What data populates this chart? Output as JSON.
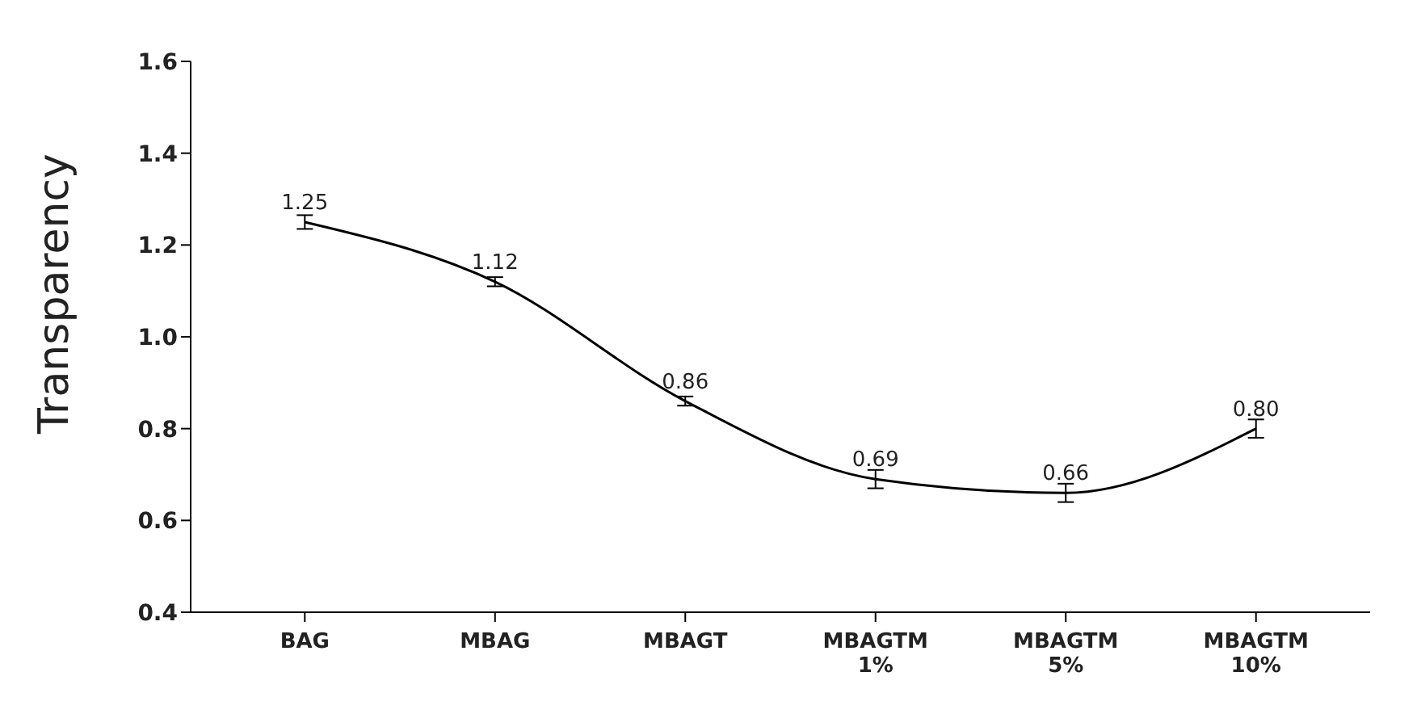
{
  "chart_data": {
    "type": "line",
    "ylabel": "Transparency",
    "categories": [
      "BAG",
      "MBAG",
      "MBAGT",
      "MBAGTM 1%",
      "MBAGTM 5%",
      "MBAGTM 10%"
    ],
    "series": [
      {
        "color": "#000000",
        "values": [
          1.25,
          1.12,
          0.86,
          0.69,
          0.66,
          0.8
        ],
        "errors": [
          0.015,
          0.01,
          0.01,
          0.02,
          0.02,
          0.02
        ],
        "value_labels": [
          "1.25",
          "1.12",
          "0.86",
          "0.69",
          "0.66",
          "0.80"
        ]
      }
    ],
    "ylim": [
      0.4,
      1.6
    ],
    "yticks": [
      0.4,
      0.6,
      0.8,
      {
        "value": 1,
        "label": "1.0"
      },
      1.2,
      1.4,
      1.6
    ],
    "grid": false,
    "marker": "none",
    "line_style": "solid"
  }
}
